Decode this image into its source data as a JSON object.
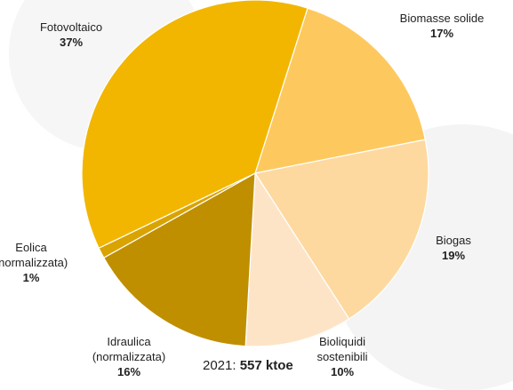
{
  "chart_data": {
    "type": "pie",
    "categories": [
      "Biomasse solide",
      "Biogas",
      "Bioliquidi sostenibili",
      "Idraulica (normalizzata)",
      "Eolica (normalizzata)",
      "Fotovoltaico"
    ],
    "values": [
      17,
      19,
      10,
      16,
      1,
      37
    ],
    "value_labels": [
      "17%",
      "19%",
      "10%",
      "16%",
      "1%",
      "37%"
    ],
    "colors": [
      "#fdc95f",
      "#fdd9a0",
      "#fee4c7",
      "#bf8f00",
      "#d9a300",
      "#f2b600"
    ],
    "note": {
      "prefix": "2021:",
      "value": "557 ktoe"
    }
  }
}
